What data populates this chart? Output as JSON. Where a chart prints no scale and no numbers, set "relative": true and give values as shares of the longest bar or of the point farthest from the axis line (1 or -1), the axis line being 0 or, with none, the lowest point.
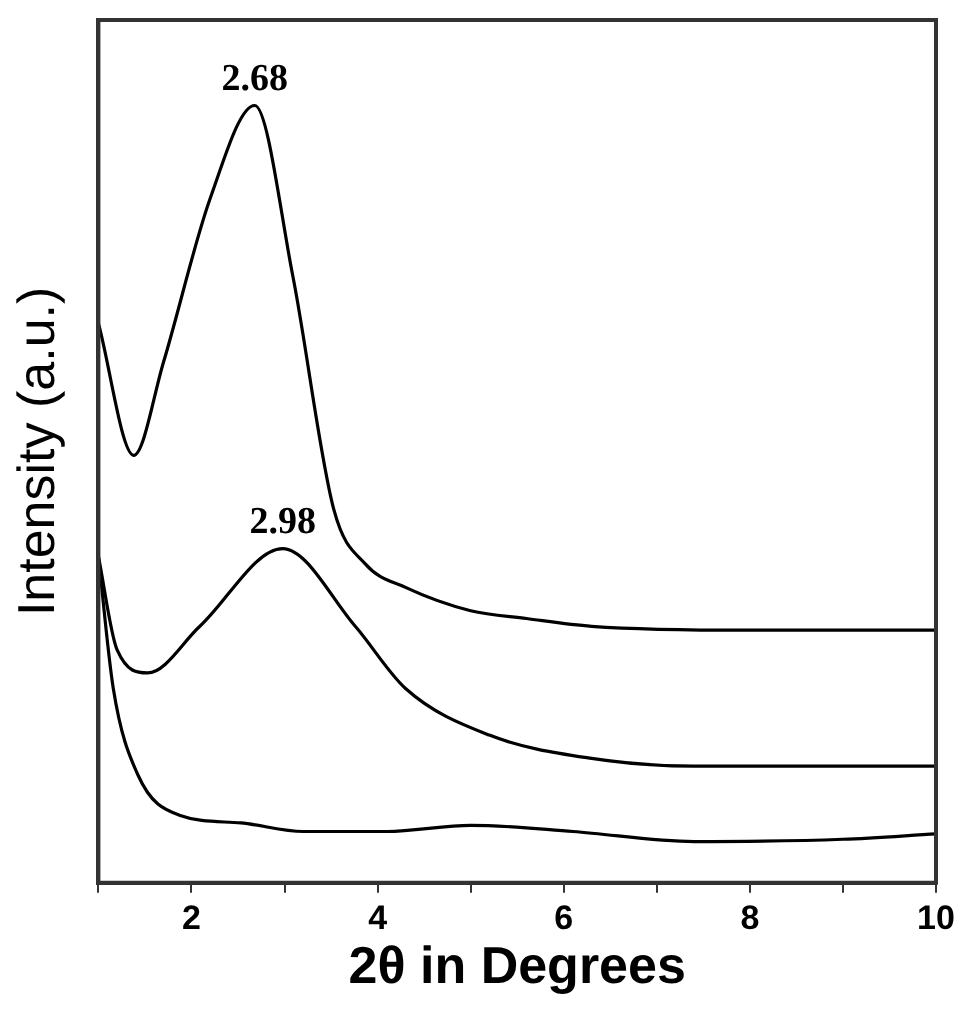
{
  "chart_data": {
    "type": "line",
    "relative": true,
    "xlabel": "2θ in Degrees",
    "ylabel": "Intensity (a.u.)",
    "xlim": [
      1,
      10
    ],
    "xticks": [
      {
        "value": 1,
        "label": null
      },
      2,
      {
        "value": 3,
        "label": null
      },
      4,
      {
        "value": 5,
        "label": null
      },
      6,
      {
        "value": 7,
        "label": null
      },
      8,
      {
        "value": 9,
        "label": null
      },
      10
    ],
    "grid": false,
    "legend": false,
    "marker": "none",
    "line_style": "solid",
    "series": [
      {
        "color": "#000000",
        "x": [
          1,
          1.38,
          1.7,
          2.2,
          2.68,
          3.09,
          3.53,
          3.87,
          4.3,
          5,
          5.6,
          6.3,
          8,
          10
        ],
        "values": [
          0.72,
          0.55,
          0.67,
          0.88,
          1,
          0.78,
          0.48,
          0.41,
          0.38,
          0.35,
          0.34,
          0.33,
          0.325,
          0.325
        ]
      },
      {
        "color": "#000000",
        "x": [
          1,
          1.2,
          1.53,
          2.09,
          2.98,
          3.76,
          4.3,
          5.2,
          6.3,
          7.4,
          10
        ],
        "values": [
          0.42,
          0.3,
          0.27,
          0.33,
          0.43,
          0.33,
          0.25,
          0.19,
          0.16,
          0.15,
          0.15
        ]
      },
      {
        "color": "#000000",
        "x": [
          1,
          1.16,
          1.42,
          1.87,
          2.53,
          3.2,
          4.1,
          5,
          6.1,
          7.4,
          9,
          10
        ],
        "values": [
          0.42,
          0.25,
          0.14,
          0.087,
          0.077,
          0.066,
          0.066,
          0.074,
          0.066,
          0.053,
          0.056,
          0.063
        ]
      }
    ],
    "annotations": [
      {
        "text": "2.68",
        "x": 2.68,
        "y": 1
      },
      {
        "text": "2.98",
        "x": 2.98,
        "y": 0.43
      }
    ]
  }
}
